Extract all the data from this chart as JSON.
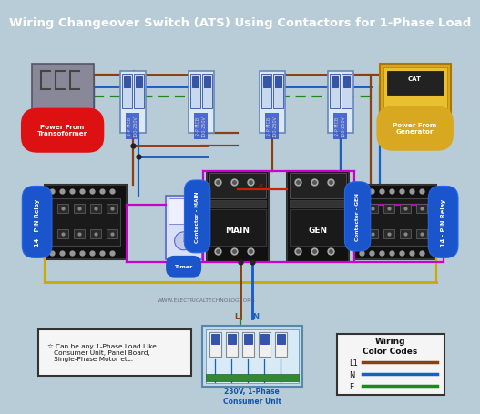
{
  "title": "Wiring Changeover Switch (ATS) Using Contactors for 1-Phase Load",
  "title_fontsize": 9.5,
  "title_bg": "#1a1a1a",
  "title_color": "#ffffff",
  "bg_color": "#b8ccd8",
  "wire_L1": "#8B4010",
  "wire_N": "#1a5fc4",
  "wire_E": "#1a8a1a",
  "wire_magenta": "#cc00cc",
  "wire_yellow": "#ccaa00",
  "wire_red": "#cc2200",
  "wire_pink": "#ff66cc",
  "watermark": "WWW.ELECTRICALTECHNOLOGY.ORG",
  "note_text": "☆ Can be any 1-Phase Load Like\n   Consumer Unit, Panel Board,\n   Single-Phase Motor etc.",
  "color_codes": {
    "L1": "#8B4010",
    "N": "#1a5fc4",
    "E": "#1a8a1a"
  },
  "labels": {
    "transformer": "Power From\nTransoformer",
    "generator": "Power From\nGenerator",
    "consumer": "230V, 1-Phase\nConsumer Unit",
    "relay_left": "14 - PIN Relay",
    "relay_right": "14 - PIN Relay",
    "contactor_main": "Contactor - MAIN",
    "contactor_gen": "Contactor - GEN",
    "timer": "Timer",
    "main_label": "MAIN",
    "gen_label": "GEN",
    "mcb1": "2-P MCB\n100-230V",
    "mcb2": "2-P MCB\n100-250V",
    "mcb3": "2-P MCB\n100-230V",
    "mcb4": "2-P MCB\n100-250V"
  },
  "wiring_title": "Wiring\nColor Codes",
  "website": "WWW.ELECTRICALTECHNOLOGY.ORG"
}
